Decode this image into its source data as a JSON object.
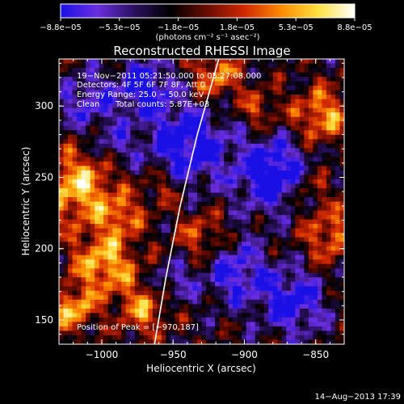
{
  "chart_data": {
    "type": "heatmap",
    "title": "Reconstructed RHESSI Image",
    "xlabel": "Heliocentric X (arcsec)",
    "ylabel": "Heliocentric Y (arcsec)",
    "xlim": [
      -1030,
      -830
    ],
    "ylim": [
      133,
      333
    ],
    "x_ticks": [
      -1000,
      -950,
      -900,
      -850
    ],
    "x_tick_labels": [
      "−1000",
      "−950",
      "−900",
      "−850"
    ],
    "y_ticks": [
      150,
      200,
      250,
      300
    ],
    "y_tick_labels": [
      "150",
      "200",
      "250",
      "300"
    ],
    "colorbar": {
      "range": [
        -8.8e-05,
        8.8e-05
      ],
      "tick_labels": [
        "−8.8e−05",
        "−5.3e−05",
        "−1.8e−05",
        "1.8e−05",
        "5.3e−05",
        "8.8e−05"
      ],
      "unit_label": "(photons cm⁻² s⁻¹ asec⁻²)",
      "colors": [
        "#1a10e6",
        "#6a2ee0",
        "#2a1060",
        "#000000",
        "#6a0c00",
        "#d02800",
        "#ff8a00",
        "#ffe040",
        "#ffffff"
      ]
    },
    "annotations": {
      "time_range": "19−Nov−2011 05:21:50.000 to 05:27:08.000",
      "detectors": "Detectors: 4F 5F 6F 7F 8F, Att 0",
      "energy": "Energy Range: 25.0 − 50.0 keV",
      "clean": "Clean",
      "total_counts": "Total counts: 5.87E+03",
      "peak": "Position of Peak = [−970,187]"
    },
    "peak_position": [
      -970,
      187
    ],
    "limb_curve": [
      [
        -963,
        133
      ],
      [
        -955,
        180
      ],
      [
        -945,
        230
      ],
      [
        -933,
        280
      ],
      [
        -918,
        333
      ]
    ]
  },
  "footer": {
    "timestamp": "14−Aug−2013 17:39"
  }
}
